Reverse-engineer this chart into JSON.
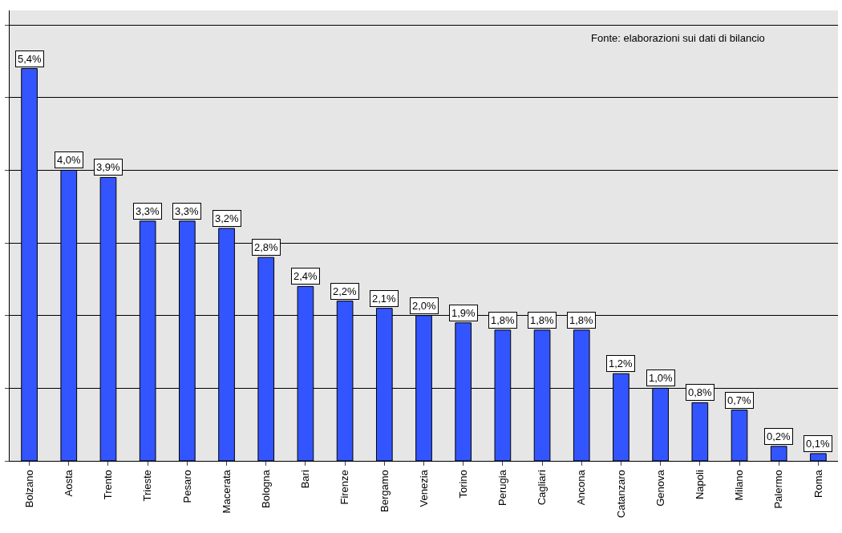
{
  "chart_data": {
    "type": "bar",
    "categories": [
      "Bolzano",
      "Aosta",
      "Trento",
      "Trieste",
      "Pesaro",
      "Macerata",
      "Bologna",
      "Bari",
      "Firenze",
      "Bergamo",
      "Venezia",
      "Torino",
      "Perugia",
      "Cagliari",
      "Ancona",
      "Catanzaro",
      "Genova",
      "Napoli",
      "Milano",
      "Palermo",
      "Roma"
    ],
    "values": [
      5.4,
      4.0,
      3.9,
      3.3,
      3.3,
      3.2,
      2.8,
      2.4,
      2.2,
      2.1,
      2.0,
      1.9,
      1.8,
      1.8,
      1.8,
      1.2,
      1.0,
      0.8,
      0.7,
      0.2,
      0.1
    ],
    "value_labels": [
      "5,4%",
      "4,0%",
      "3,9%",
      "3,3%",
      "3,3%",
      "3,2%",
      "2,8%",
      "2,4%",
      "2,2%",
      "2,1%",
      "2,0%",
      "1,9%",
      "1,8%",
      "1,8%",
      "1,8%",
      "1,2%",
      "1,0%",
      "0,8%",
      "0,7%",
      "0,2%",
      "0,1%"
    ],
    "color": "#3355ff",
    "ylim": [
      0,
      6.2
    ],
    "yticks": [
      {
        "value": 0,
        "label": null
      },
      {
        "value": 1,
        "label": null
      },
      {
        "value": 2,
        "label": null
      },
      {
        "value": 3,
        "label": null
      },
      {
        "value": 4,
        "label": null
      },
      {
        "value": 5,
        "label": null
      },
      {
        "value": 6,
        "label": null
      }
    ],
    "grid": "y",
    "annotations": [
      "Fonte: elaborazioni sui dati di bilancio"
    ]
  }
}
